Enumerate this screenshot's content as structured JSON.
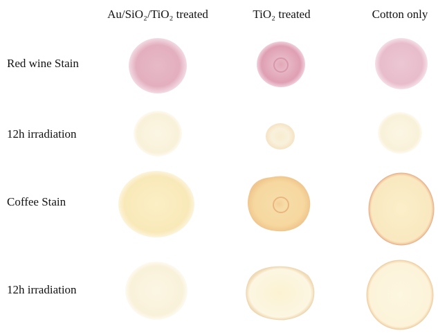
{
  "columns": [
    "Au/SiO₂/TiO₂ treated",
    "TiO₂ treated",
    "Cotton only"
  ],
  "rows": [
    "Red wine Stain",
    "12h irradiation",
    "Coffee Stain",
    "12h irradiation"
  ]
}
